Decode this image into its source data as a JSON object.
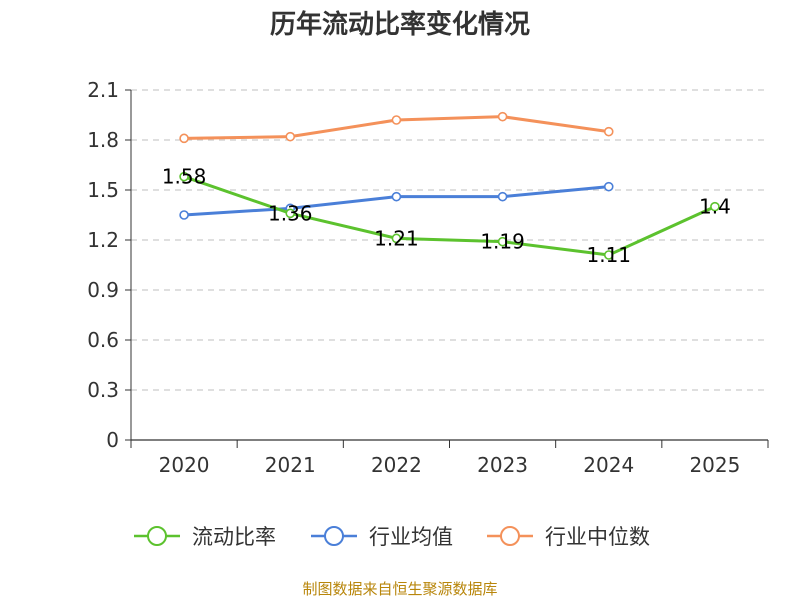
{
  "chart_data": {
    "type": "line",
    "title": "历年流动比率变化情况",
    "categories": [
      "2020",
      "2021",
      "2022",
      "2023",
      "2024",
      "2025"
    ],
    "ylim": [
      0,
      2.1
    ],
    "yticks": [
      "0",
      "0.3",
      "0.6",
      "0.9",
      "1.2",
      "1.5",
      "1.8",
      "2.1"
    ],
    "grid": true,
    "legend_position": "bottom",
    "series": [
      {
        "name": "流动比率",
        "color": "#5cc22e",
        "values": [
          1.58,
          1.36,
          1.21,
          1.19,
          1.11,
          1.4
        ],
        "labels": [
          "1.58",
          "1.36",
          "1.21",
          "1.19",
          "1.11",
          "1.4"
        ]
      },
      {
        "name": "行业均值",
        "color": "#4a7fd8",
        "values": [
          1.35,
          1.39,
          1.46,
          1.46,
          1.52,
          null
        ]
      },
      {
        "name": "行业中位数",
        "color": "#f4915a",
        "values": [
          1.81,
          1.82,
          1.92,
          1.94,
          1.85,
          null
        ]
      }
    ],
    "source": "制图数据来自恒生聚源数据库"
  }
}
